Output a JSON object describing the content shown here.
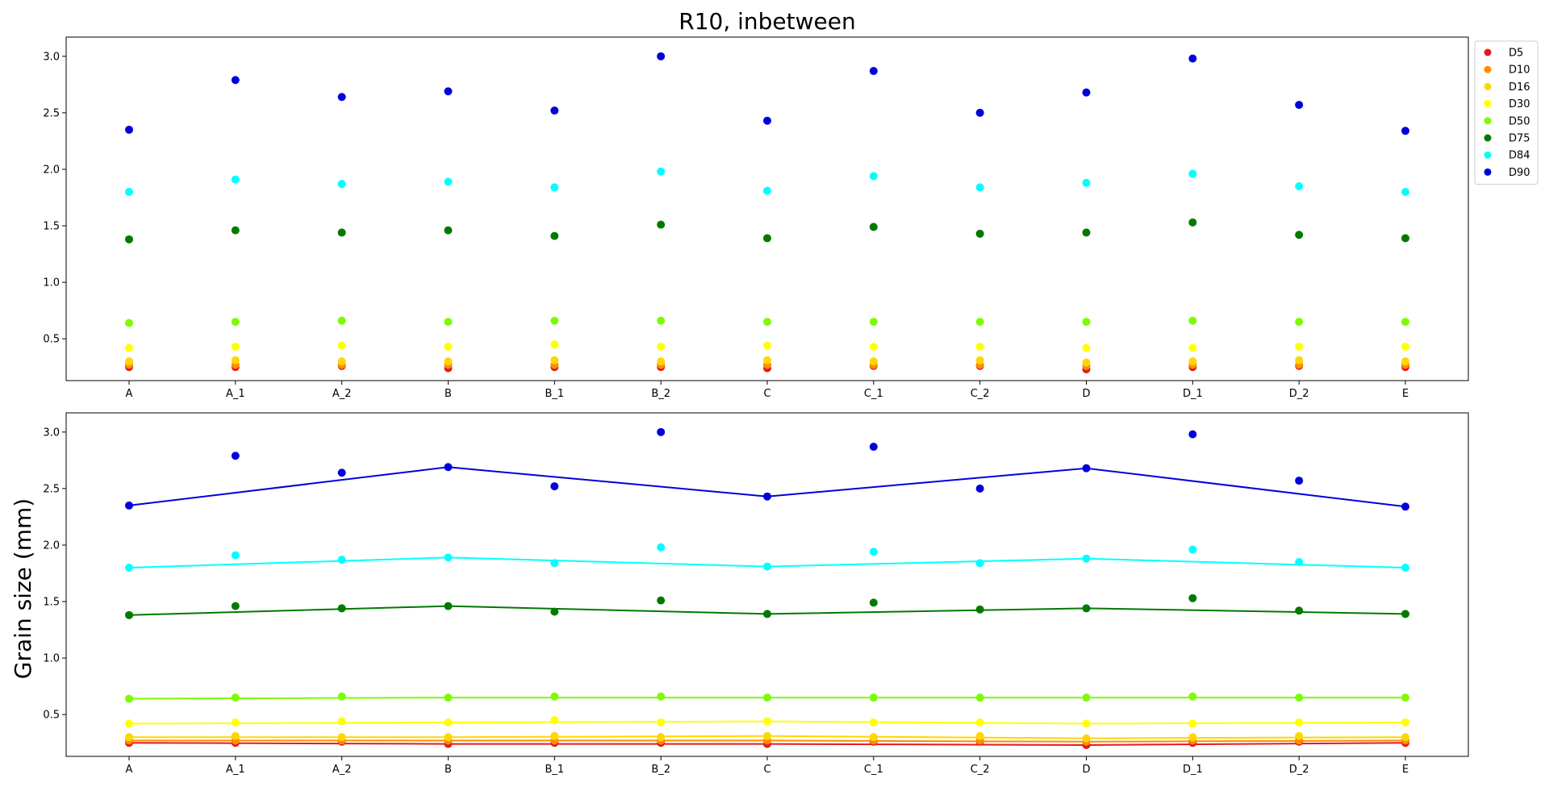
{
  "chart_data": {
    "type": "scatter",
    "title": "R10, inbetween",
    "ylabel": "Grain size (mm)",
    "xlabel": "",
    "categories": [
      "A",
      "A_1",
      "A_2",
      "B",
      "B_1",
      "B_2",
      "C",
      "C_1",
      "C_2",
      "D",
      "D_1",
      "D_2",
      "E"
    ],
    "ylim": [
      0.13,
      3.17
    ],
    "yticks": [
      "0.5",
      "1.0",
      "1.5",
      "2.0",
      "2.5",
      "3.0"
    ],
    "legend_position": "upper-right-outside",
    "main_points": [
      "A",
      "B",
      "C",
      "D",
      "E"
    ],
    "series": [
      {
        "name": "D5",
        "color": "#e31a1c",
        "values": [
          0.25,
          0.25,
          0.26,
          0.24,
          0.25,
          0.25,
          0.24,
          0.26,
          0.26,
          0.23,
          0.25,
          0.26,
          0.25
        ]
      },
      {
        "name": "D10",
        "color": "#ff8c00",
        "values": [
          0.27,
          0.27,
          0.27,
          0.27,
          0.27,
          0.27,
          0.27,
          0.27,
          0.27,
          0.26,
          0.27,
          0.27,
          0.27
        ]
      },
      {
        "name": "D16",
        "color": "#ffd700",
        "values": [
          0.3,
          0.31,
          0.3,
          0.3,
          0.31,
          0.3,
          0.31,
          0.3,
          0.31,
          0.29,
          0.3,
          0.31,
          0.3
        ]
      },
      {
        "name": "D30",
        "color": "#ffff00",
        "values": [
          0.42,
          0.43,
          0.44,
          0.43,
          0.45,
          0.43,
          0.44,
          0.43,
          0.43,
          0.42,
          0.42,
          0.43,
          0.43
        ]
      },
      {
        "name": "D50",
        "color": "#7cfc00",
        "values": [
          0.64,
          0.65,
          0.66,
          0.65,
          0.66,
          0.66,
          0.65,
          0.65,
          0.65,
          0.65,
          0.66,
          0.65,
          0.65
        ]
      },
      {
        "name": "D75",
        "color": "#007a00",
        "values": [
          1.38,
          1.46,
          1.44,
          1.46,
          1.41,
          1.51,
          1.39,
          1.49,
          1.43,
          1.44,
          1.53,
          1.42,
          1.39
        ]
      },
      {
        "name": "D84",
        "color": "#00ffff",
        "values": [
          1.8,
          1.91,
          1.87,
          1.89,
          1.84,
          1.98,
          1.81,
          1.94,
          1.84,
          1.88,
          1.96,
          1.85,
          1.8
        ]
      },
      {
        "name": "D90",
        "color": "#0000dd",
        "values": [
          2.35,
          2.79,
          2.64,
          2.69,
          2.52,
          3.0,
          2.43,
          2.87,
          2.5,
          2.68,
          2.98,
          2.57,
          2.34
        ]
      }
    ]
  }
}
